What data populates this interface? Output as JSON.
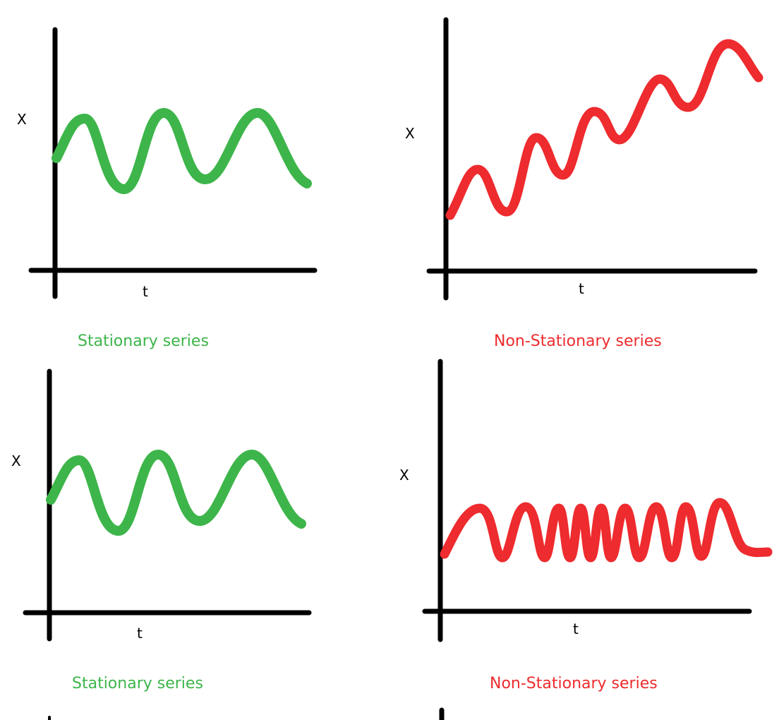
{
  "colors": {
    "stationary": "#3db54a",
    "non_stationary": "#ee2b2e",
    "axis": "#000000"
  },
  "panels": [
    {
      "id": "top-left",
      "kind": "stationary",
      "y_label": "X",
      "x_label": "t",
      "caption": "Stationary series"
    },
    {
      "id": "top-right",
      "kind": "non_stationary",
      "y_label": "X",
      "x_label": "t",
      "caption": "Non-Stationary series"
    },
    {
      "id": "bottom-left",
      "kind": "stationary",
      "y_label": "X",
      "x_label": "t",
      "caption": "Stationary series"
    },
    {
      "id": "bottom-right",
      "kind": "non_stationary",
      "y_label": "X",
      "x_label": "t",
      "caption": "Non-Stationary series"
    }
  ]
}
